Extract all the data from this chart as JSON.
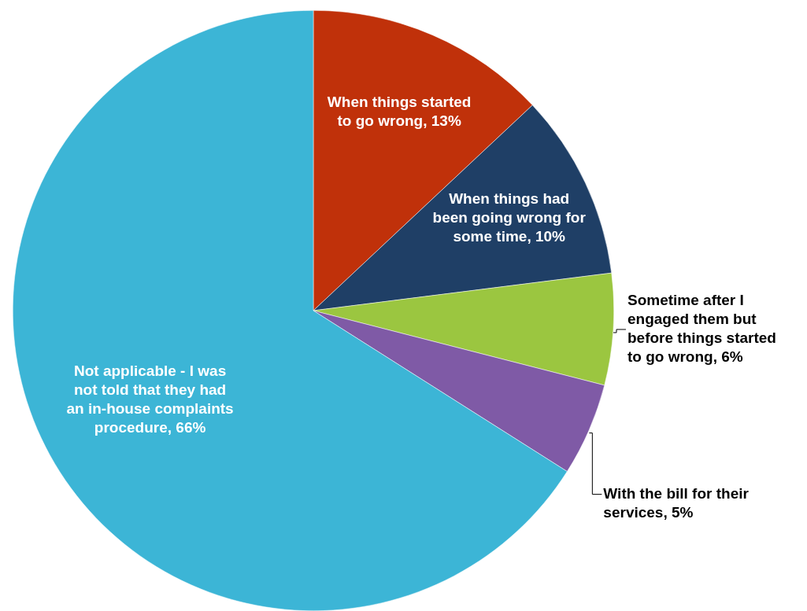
{
  "chart_data": {
    "type": "pie",
    "categories": [
      "When things started to go wrong",
      "When things had been going wrong for some time",
      "Sometime after I engaged them but before things started to go wrong",
      "With the bill for their services",
      "Not applicable - I was not told that they had an in-house complaints procedure"
    ],
    "values": [
      13,
      10,
      6,
      5,
      66
    ],
    "value_labels": [
      "13%",
      "10%",
      "6%",
      "5%",
      "66%"
    ],
    "colors": [
      "#c0310a",
      "#1f3f66",
      "#9bc640",
      "#7f5aa6",
      "#3cb5d6"
    ],
    "legend": false
  }
}
